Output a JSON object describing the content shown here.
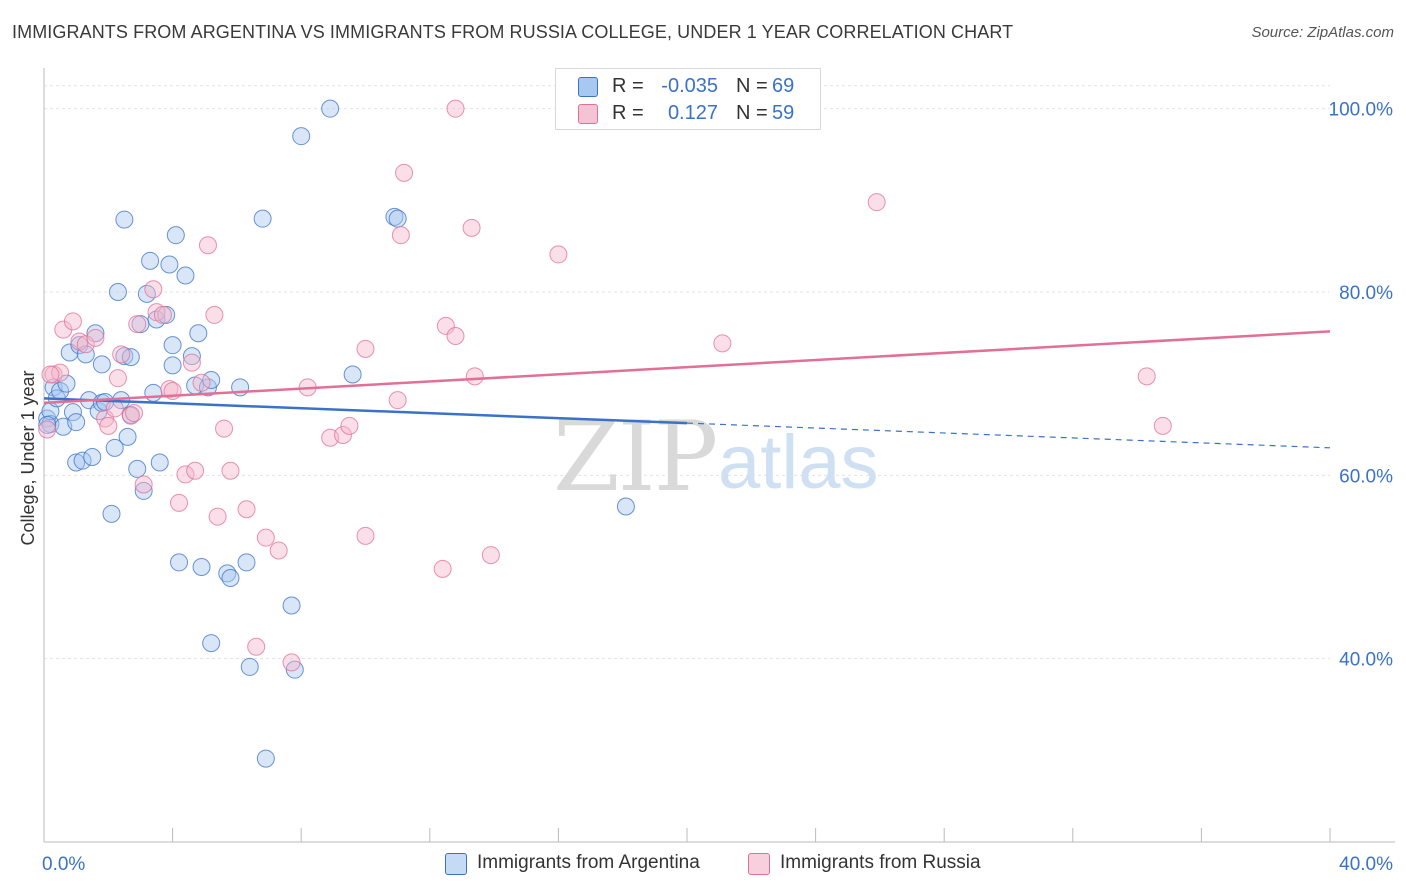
{
  "title": "IMMIGRANTS FROM ARGENTINA VS IMMIGRANTS FROM RUSSIA COLLEGE, UNDER 1 YEAR CORRELATION CHART",
  "source": "Source: ZipAtlas.com",
  "watermark": {
    "zip": "ZIP",
    "atlas": "atlas"
  },
  "colors": {
    "blue": "#3a72c9",
    "blue_fill": "#a9c8f0",
    "pink": "#e26f96",
    "pink_fill": "#f5b8cb",
    "grid": "#e3e3e3",
    "axis": "#bbbbbb"
  },
  "legend": {
    "rows": [
      {
        "r_label": "R =",
        "r_value": "-0.035",
        "n_label": "N =",
        "n_value": "69"
      },
      {
        "r_label": "R =",
        "r_value": "0.127",
        "n_label": "N =",
        "n_value": "59"
      }
    ]
  },
  "chart_data": {
    "type": "scatter",
    "title": "IMMIGRANTS FROM ARGENTINA VS IMMIGRANTS FROM RUSSIA COLLEGE, UNDER 1 YEAR CORRELATION CHART",
    "xlabel": "",
    "ylabel": "College, Under 1 year",
    "xlim": [
      0,
      40
    ],
    "ylim": [
      20,
      104
    ],
    "x_tick_labels": [
      "0.0%",
      "40.0%"
    ],
    "y_ticks": [
      40,
      60,
      80,
      100
    ],
    "y_tick_labels": [
      "40.0%",
      "60.0%",
      "80.0%",
      "100.0%"
    ],
    "grid": true,
    "legend_position": "top-center",
    "series": [
      {
        "name": "Immigrants from Argentina",
        "color": "blue",
        "trend": {
          "x0": 0,
          "y0": 68.4,
          "x1": 20,
          "y1": 65.7,
          "x_dash_end": 40,
          "y_dash_end": 63.0
        },
        "points": [
          [
            0.1,
            66.2
          ],
          [
            0.2,
            65.6
          ],
          [
            0.2,
            67.0
          ],
          [
            0.3,
            69.6
          ],
          [
            0.4,
            68.4
          ],
          [
            0.5,
            69.2
          ],
          [
            0.6,
            65.3
          ],
          [
            0.7,
            70.0
          ],
          [
            0.8,
            73.4
          ],
          [
            0.9,
            66.9
          ],
          [
            1.0,
            65.8
          ],
          [
            1.0,
            61.4
          ],
          [
            1.1,
            74.2
          ],
          [
            1.2,
            61.6
          ],
          [
            1.3,
            73.2
          ],
          [
            1.4,
            68.2
          ],
          [
            1.5,
            62.0
          ],
          [
            1.6,
            75.5
          ],
          [
            1.7,
            67.0
          ],
          [
            1.8,
            67.9
          ],
          [
            1.8,
            72.1
          ],
          [
            1.9,
            68.0
          ],
          [
            2.1,
            55.8
          ],
          [
            2.2,
            63.0
          ],
          [
            2.3,
            80.0
          ],
          [
            2.4,
            68.2
          ],
          [
            2.5,
            73.0
          ],
          [
            2.5,
            87.9
          ],
          [
            2.6,
            64.2
          ],
          [
            2.7,
            66.6
          ],
          [
            2.7,
            72.9
          ],
          [
            2.9,
            60.7
          ],
          [
            3.0,
            76.5
          ],
          [
            3.1,
            58.3
          ],
          [
            3.2,
            79.8
          ],
          [
            3.3,
            83.4
          ],
          [
            3.4,
            69.0
          ],
          [
            3.5,
            77.0
          ],
          [
            3.6,
            61.4
          ],
          [
            3.8,
            77.5
          ],
          [
            3.9,
            83.0
          ],
          [
            4.0,
            72.0
          ],
          [
            4.0,
            74.2
          ],
          [
            4.1,
            86.2
          ],
          [
            4.2,
            50.5
          ],
          [
            4.4,
            81.8
          ],
          [
            4.6,
            73.0
          ],
          [
            4.7,
            69.8
          ],
          [
            4.8,
            75.5
          ],
          [
            4.9,
            50.0
          ],
          [
            5.1,
            69.6
          ],
          [
            5.2,
            70.4
          ],
          [
            5.2,
            41.7
          ],
          [
            5.7,
            49.3
          ],
          [
            5.8,
            48.8
          ],
          [
            6.1,
            69.6
          ],
          [
            6.3,
            50.5
          ],
          [
            6.4,
            39.1
          ],
          [
            6.8,
            88.0
          ],
          [
            6.9,
            29.1
          ],
          [
            7.7,
            45.8
          ],
          [
            7.8,
            38.8
          ],
          [
            8.0,
            97.0
          ],
          [
            8.9,
            100.0
          ],
          [
            9.6,
            71.0
          ],
          [
            10.9,
            88.2
          ],
          [
            11.0,
            88.0
          ],
          [
            18.1,
            56.6
          ],
          [
            0.1,
            65.5
          ]
        ]
      },
      {
        "name": "Immigrants from Russia",
        "color": "pink",
        "trend": {
          "x0": 0,
          "y0": 67.9,
          "x1": 40,
          "y1": 75.7
        },
        "points": [
          [
            0.1,
            65.0
          ],
          [
            0.3,
            71.0
          ],
          [
            0.5,
            71.2
          ],
          [
            0.6,
            75.9
          ],
          [
            0.9,
            76.8
          ],
          [
            1.1,
            74.6
          ],
          [
            1.3,
            74.3
          ],
          [
            1.6,
            75.0
          ],
          [
            1.9,
            66.2
          ],
          [
            2.0,
            65.4
          ],
          [
            2.2,
            67.3
          ],
          [
            2.3,
            70.6
          ],
          [
            2.4,
            73.2
          ],
          [
            2.7,
            66.5
          ],
          [
            2.8,
            66.8
          ],
          [
            2.9,
            76.5
          ],
          [
            3.1,
            59.0
          ],
          [
            3.4,
            80.3
          ],
          [
            3.5,
            77.8
          ],
          [
            3.7,
            77.5
          ],
          [
            3.9,
            69.4
          ],
          [
            4.0,
            69.2
          ],
          [
            4.2,
            57.0
          ],
          [
            4.4,
            60.1
          ],
          [
            4.6,
            72.3
          ],
          [
            4.7,
            60.5
          ],
          [
            4.9,
            70.1
          ],
          [
            5.1,
            85.1
          ],
          [
            5.3,
            77.5
          ],
          [
            5.4,
            55.5
          ],
          [
            5.6,
            65.1
          ],
          [
            5.8,
            60.5
          ],
          [
            6.3,
            56.3
          ],
          [
            6.6,
            41.3
          ],
          [
            6.9,
            53.2
          ],
          [
            7.3,
            51.8
          ],
          [
            7.7,
            39.6
          ],
          [
            8.2,
            69.6
          ],
          [
            8.9,
            64.1
          ],
          [
            9.3,
            64.4
          ],
          [
            9.5,
            65.4
          ],
          [
            10.0,
            73.8
          ],
          [
            10.0,
            53.4
          ],
          [
            11.0,
            68.2
          ],
          [
            11.1,
            86.2
          ],
          [
            11.2,
            93.0
          ],
          [
            12.4,
            49.8
          ],
          [
            12.5,
            76.3
          ],
          [
            12.8,
            75.2
          ],
          [
            12.8,
            100.0
          ],
          [
            13.3,
            87.0
          ],
          [
            13.4,
            70.8
          ],
          [
            13.9,
            51.3
          ],
          [
            16.0,
            84.1
          ],
          [
            21.1,
            74.4
          ],
          [
            25.9,
            89.8
          ],
          [
            34.3,
            70.8
          ],
          [
            34.8,
            65.4
          ],
          [
            0.2,
            71.0
          ]
        ]
      }
    ]
  },
  "bottom_legend": [
    {
      "label": "Immigrants from Argentina",
      "color": "blue"
    },
    {
      "label": "Immigrants from Russia",
      "color": "pink"
    }
  ]
}
